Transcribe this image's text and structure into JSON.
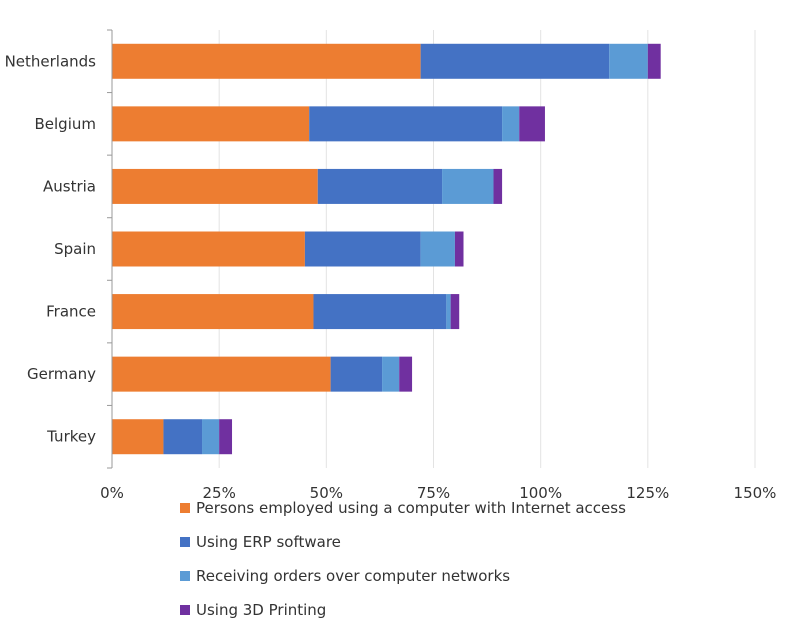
{
  "chart_data": {
    "type": "bar",
    "orientation": "horizontal",
    "stacked": true,
    "categories": [
      "Netherlands",
      "Belgium",
      "Austria",
      "Spain",
      "France",
      "Germany",
      "Turkey"
    ],
    "series": [
      {
        "name": "Persons employed using a computer with Internet access",
        "color": "#ED7D31",
        "values": [
          72,
          46,
          48,
          45,
          47,
          51,
          12
        ]
      },
      {
        "name": "Using ERP software",
        "color": "#4472C4",
        "values": [
          44,
          45,
          29,
          27,
          31,
          12,
          9
        ]
      },
      {
        "name": "Receiving orders over computer networks",
        "color": "#5B9BD5",
        "values": [
          9,
          4,
          12,
          8,
          1,
          4,
          4
        ]
      },
      {
        "name": "Using 3D Printing",
        "color": "#7030A0",
        "values": [
          3,
          6,
          2,
          2,
          2,
          3,
          3
        ]
      }
    ],
    "xlim": [
      0,
      150
    ],
    "xticks": [
      "0%",
      "25%",
      "50%",
      "75%",
      "100%",
      "125%",
      "150%"
    ],
    "title": "",
    "xlabel": "",
    "ylabel": "",
    "grid": "vertical",
    "legend_position": "bottom"
  }
}
